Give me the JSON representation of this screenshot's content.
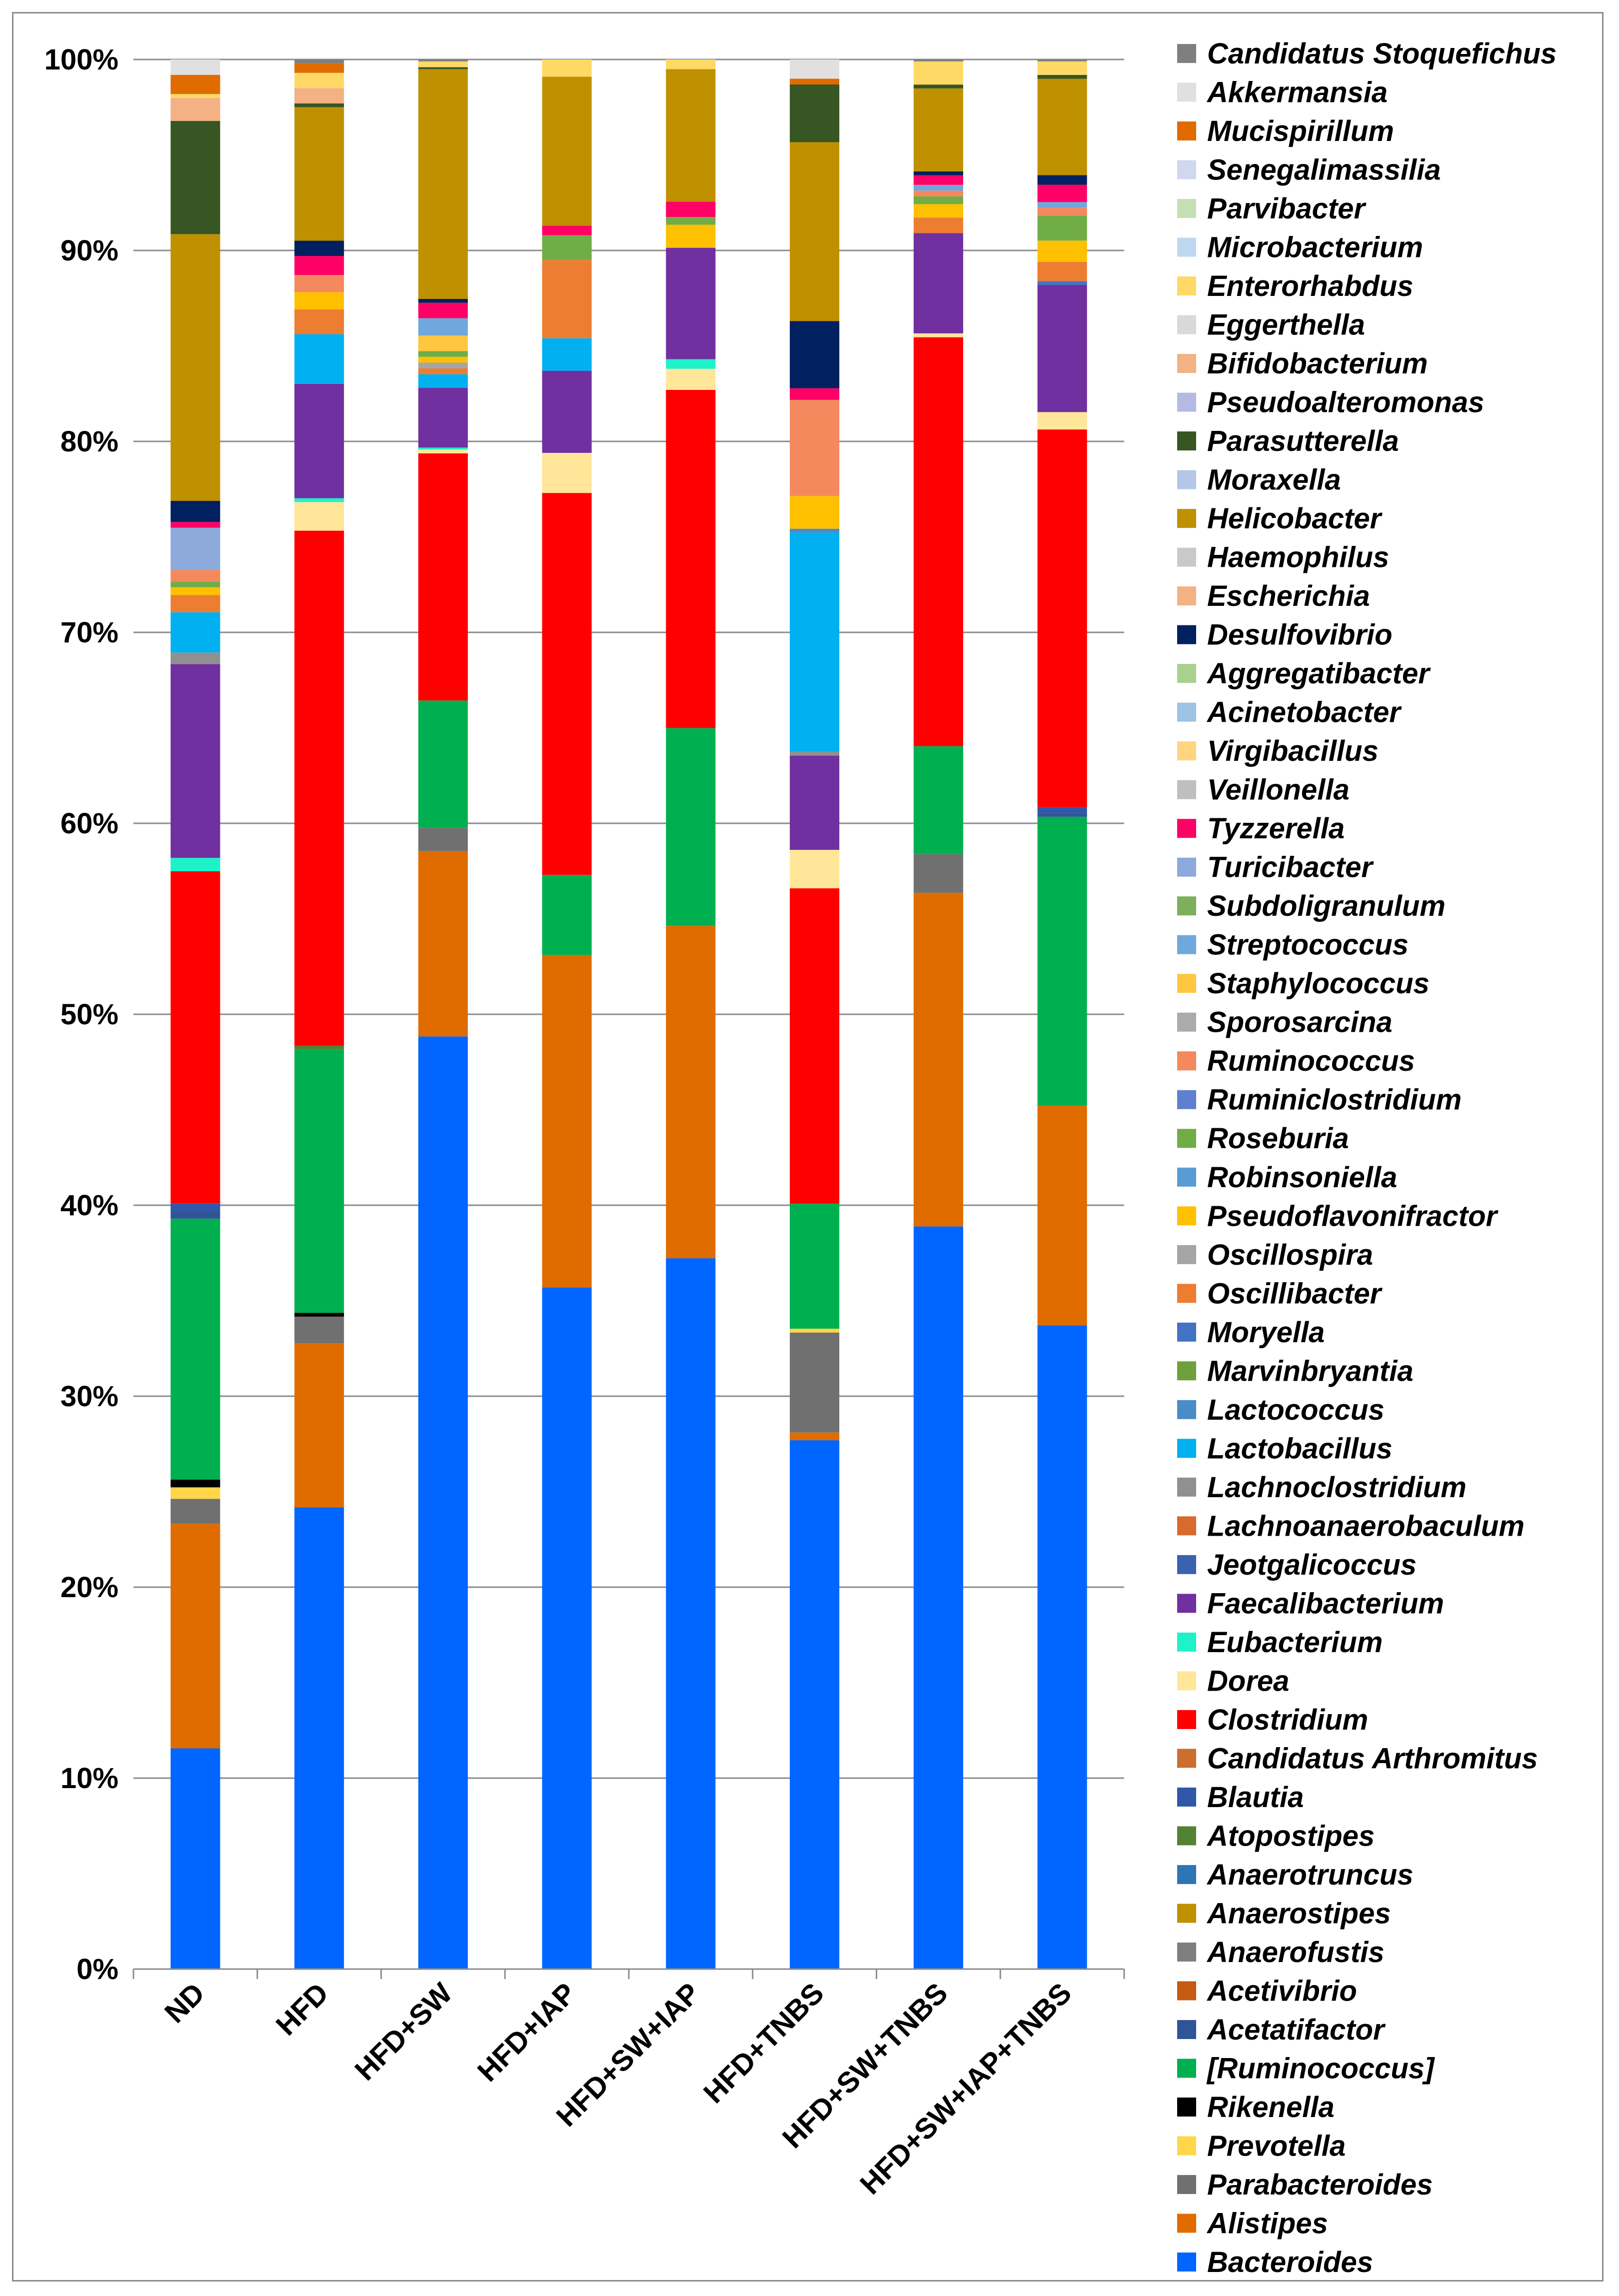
{
  "chart_data": {
    "type": "bar",
    "stacked": true,
    "normalized": true,
    "title": "",
    "xlabel": "",
    "ylabel": "",
    "ylim": [
      0,
      100
    ],
    "y_ticks": [
      "0%",
      "10%",
      "20%",
      "30%",
      "40%",
      "50%",
      "60%",
      "70%",
      "80%",
      "90%",
      "100%"
    ],
    "legend_position": "right",
    "categories": [
      "ND",
      "HFD",
      "HFD+SW",
      "HFD+IAP",
      "HFD+SW+IAP",
      "HFD+TNBS",
      "HFD+SW+TNBS",
      "HFD+SW+IAP+TNBS"
    ],
    "series": [
      {
        "name": "Bacteroides",
        "color": "#0066FF",
        "values": [
          11.5,
          24.2,
          48.3,
          35.7,
          37.0,
          27.5,
          38.5,
          33.4
        ]
      },
      {
        "name": "Alistipes",
        "color": "#E06C00",
        "values": [
          11.7,
          8.6,
          9.6,
          17.4,
          17.3,
          0.4,
          17.3,
          11.4
        ]
      },
      {
        "name": "Parabacteroides",
        "color": "#707070",
        "values": [
          1.3,
          1.4,
          1.2,
          0,
          0,
          5.2,
          2.0,
          0
        ]
      },
      {
        "name": "Prevotella",
        "color": "#FFD54A",
        "values": [
          0.6,
          0,
          0,
          0,
          0,
          0.2,
          0,
          0
        ]
      },
      {
        "name": "Rikenella",
        "color": "#000000",
        "values": [
          0.4,
          0.2,
          0,
          0,
          0,
          0,
          0,
          0
        ]
      },
      {
        "name": "[Ruminococcus]",
        "color": "#00B050",
        "values": [
          13.6,
          13.8,
          6.6,
          4.2,
          10.3,
          6.5,
          5.6,
          15.0
        ]
      },
      {
        "name": "Acetatifactor",
        "color": "#2F5597",
        "values": [
          0.4,
          0,
          0,
          0,
          0,
          0,
          0,
          0.2
        ]
      },
      {
        "name": "Acetivibrio",
        "color": "#C55A11",
        "values": [
          0,
          0,
          0,
          0,
          0,
          0,
          0,
          0
        ]
      },
      {
        "name": "Anaerofustis",
        "color": "#7F7F7F",
        "values": [
          0,
          0,
          0,
          0,
          0,
          0,
          0,
          0
        ]
      },
      {
        "name": "Anaerostipes",
        "color": "#BF9000",
        "values": [
          0,
          0,
          0,
          0,
          0,
          0,
          0,
          0
        ]
      },
      {
        "name": "Anaerotruncus",
        "color": "#2E75B6",
        "values": [
          0,
          0,
          0,
          0,
          0,
          0,
          0,
          0
        ]
      },
      {
        "name": "Atopostipes",
        "color": "#548235",
        "values": [
          0,
          0.2,
          0,
          0,
          0,
          0,
          0,
          0
        ]
      },
      {
        "name": "Blautia",
        "color": "#3057A8",
        "values": [
          0.4,
          0,
          0,
          0,
          0,
          0,
          0,
          0.3
        ]
      },
      {
        "name": "Candidatus Arthromitus",
        "color": "#CC6E2E",
        "values": [
          0,
          0,
          0,
          0,
          0,
          0,
          0,
          0
        ]
      },
      {
        "name": "Clostridium",
        "color": "#FF0000",
        "values": [
          17.3,
          27.0,
          12.8,
          20.0,
          17.6,
          16.4,
          21.2,
          19.6
        ]
      },
      {
        "name": "Dorea",
        "color": "#FFE699",
        "values": [
          0,
          1.5,
          0.2,
          2.1,
          1.1,
          2.0,
          0.2,
          0.9
        ]
      },
      {
        "name": "Eubacterium",
        "color": "#1DF2C8",
        "values": [
          0.7,
          0.2,
          0.1,
          0,
          0.5,
          0,
          0,
          0
        ]
      },
      {
        "name": "Faecalibacterium",
        "color": "#7030A0",
        "values": [
          10.1,
          6.0,
          3.1,
          4.3,
          5.8,
          4.9,
          5.2,
          6.6
        ]
      },
      {
        "name": "Jeotgalicoccus",
        "color": "#3A62B0",
        "values": [
          0,
          0,
          0,
          0,
          0,
          0,
          0,
          0
        ]
      },
      {
        "name": "Lachnoanaerobaculum",
        "color": "#D86A2E",
        "values": [
          0,
          0,
          0,
          0,
          0,
          0,
          0,
          0
        ]
      },
      {
        "name": "Lachnoclostridium",
        "color": "#909090",
        "values": [
          0.6,
          0,
          0,
          0,
          0,
          0.2,
          0,
          0
        ]
      },
      {
        "name": "Lactobacillus",
        "color": "#00B0F0",
        "values": [
          2.1,
          2.6,
          0.7,
          1.7,
          0,
          11.4,
          0,
          0
        ]
      },
      {
        "name": "Lactococcus",
        "color": "#4A8CC8",
        "values": [
          0,
          0,
          0,
          0,
          0,
          0.2,
          0,
          0
        ]
      },
      {
        "name": "Marvinbryantia",
        "color": "#6EA03C",
        "values": [
          0,
          0,
          0,
          0,
          0,
          0,
          0,
          0
        ]
      },
      {
        "name": "Moryella",
        "color": "#4472C4",
        "values": [
          0,
          0,
          0,
          0,
          0,
          0,
          0,
          0.2
        ]
      },
      {
        "name": "Oscillibacter",
        "color": "#ED7D31",
        "values": [
          0.9,
          1.3,
          0.3,
          4.1,
          0,
          0,
          0.8,
          1.0
        ]
      },
      {
        "name": "Oscillospira",
        "color": "#A5A5A5",
        "values": [
          0,
          0,
          0.3,
          0,
          0,
          0,
          0,
          0
        ]
      },
      {
        "name": "Pseudoflavonifractor",
        "color": "#FFC000",
        "values": [
          0.4,
          0.9,
          0.3,
          0,
          1.2,
          1.7,
          0.7,
          1.1
        ]
      },
      {
        "name": "Robinsoniella",
        "color": "#5B9BD5",
        "values": [
          0,
          0,
          0,
          0,
          0,
          0,
          0,
          0
        ]
      },
      {
        "name": "Roseburia",
        "color": "#70AD47",
        "values": [
          0.3,
          0,
          0.3,
          1.3,
          0.4,
          0,
          0.4,
          1.3
        ]
      },
      {
        "name": "Ruminiclostridium",
        "color": "#5F7FD0",
        "values": [
          0,
          0,
          0,
          0,
          0,
          0,
          0,
          0
        ]
      },
      {
        "name": "Ruminococcus",
        "color": "#F4895E",
        "values": [
          0.6,
          0.9,
          0,
          0,
          0,
          5.0,
          0.3,
          0.4
        ]
      },
      {
        "name": "Sporosarcina",
        "color": "#ABABAB",
        "values": [
          0,
          0,
          0,
          0,
          0,
          0,
          0,
          0
        ]
      },
      {
        "name": "Staphylococcus",
        "color": "#FFC740",
        "values": [
          0,
          0,
          0.8,
          0,
          0,
          0,
          0,
          0
        ]
      },
      {
        "name": "Streptococcus",
        "color": "#6FA8DC",
        "values": [
          0,
          0,
          0.9,
          0,
          0,
          0,
          0.3,
          0.3
        ]
      },
      {
        "name": "Subdoligranulum",
        "color": "#7DB05A",
        "values": [
          0,
          0,
          0,
          0,
          0,
          0,
          0,
          0
        ]
      },
      {
        "name": "Turicibacter",
        "color": "#8EA9DB",
        "values": [
          2.2,
          0,
          0,
          0,
          0,
          0,
          0,
          0
        ]
      },
      {
        "name": "Tyzzerella",
        "color": "#FF0066",
        "values": [
          0.3,
          1.0,
          0.8,
          0.5,
          0.8,
          0.6,
          0.5,
          0.9
        ]
      },
      {
        "name": "Veillonella",
        "color": "#BFBFBF",
        "values": [
          0,
          0,
          0,
          0,
          0,
          0,
          0,
          0
        ]
      },
      {
        "name": "Virgibacillus",
        "color": "#FFD580",
        "values": [
          0,
          0,
          0,
          0,
          0,
          0,
          0,
          0
        ]
      },
      {
        "name": "Acinetobacter",
        "color": "#9DC3E6",
        "values": [
          0,
          0,
          0,
          0,
          0,
          0,
          0,
          0
        ]
      },
      {
        "name": "Aggregatibacter",
        "color": "#A9D18E",
        "values": [
          0,
          0,
          0,
          0,
          0,
          0,
          0,
          0
        ]
      },
      {
        "name": "Desulfovibrio",
        "color": "#002060",
        "values": [
          1.1,
          0.8,
          0.2,
          0,
          0,
          3.5,
          0.2,
          0.5
        ]
      },
      {
        "name": "Escherichia",
        "color": "#F4B183",
        "values": [
          0,
          0,
          0,
          0,
          0,
          0,
          0,
          0
        ]
      },
      {
        "name": "Haemophilus",
        "color": "#C9C9C9",
        "values": [
          0,
          0,
          0,
          0,
          0,
          0,
          0,
          0
        ]
      },
      {
        "name": "Helicobacter",
        "color": "#BF9000",
        "values": [
          13.9,
          7.0,
          11.9,
          7.8,
          6.9,
          9.3,
          4.3,
          5.0
        ]
      },
      {
        "name": "Moraxella",
        "color": "#B4C7E7",
        "values": [
          0,
          0,
          0,
          0,
          0,
          0,
          0,
          0
        ]
      },
      {
        "name": "Parasutterella",
        "color": "#375623",
        "values": [
          5.9,
          0.2,
          0.1,
          0,
          0,
          3.0,
          0.2,
          0.2
        ]
      },
      {
        "name": "Pseudoalteromonas",
        "color": "#B4BBE3",
        "values": [
          0,
          0,
          0,
          0,
          0,
          0,
          0,
          0
        ]
      },
      {
        "name": "Bifidobacterium",
        "color": "#F4B183",
        "values": [
          1.2,
          0.8,
          0,
          0,
          0,
          0,
          0,
          0
        ]
      },
      {
        "name": "Eggerthella",
        "color": "#D9D9D9",
        "values": [
          0,
          0,
          0,
          0,
          0,
          0,
          0,
          0
        ]
      },
      {
        "name": "Enterorhabdus",
        "color": "#FFD966",
        "values": [
          0.2,
          0.8,
          0.3,
          0.9,
          0.5,
          0,
          1.2,
          0.7
        ]
      },
      {
        "name": "Microbacterium",
        "color": "#BDD7EE",
        "values": [
          0,
          0,
          0,
          0,
          0,
          0,
          0,
          0
        ]
      },
      {
        "name": "Parvibacter",
        "color": "#C5E0B4",
        "values": [
          0,
          0,
          0,
          0,
          0,
          0,
          0,
          0
        ]
      },
      {
        "name": "Senegalimassilia",
        "color": "#D0D8F0",
        "values": [
          0,
          0,
          0,
          0,
          0,
          0,
          0,
          0
        ]
      },
      {
        "name": "Mucispirillum",
        "color": "#E06C00",
        "values": [
          1.0,
          0.5,
          0,
          0,
          0,
          0.3,
          0,
          0
        ]
      },
      {
        "name": "Akkermansia",
        "color": "#E0E0E0",
        "values": [
          0.8,
          0,
          0,
          0,
          0,
          1.0,
          0,
          0
        ]
      },
      {
        "name": "Candidatus Stoquefichus",
        "color": "#7F7F7F",
        "values": [
          0,
          0.2,
          0.1,
          0,
          0,
          0,
          0.1,
          0.1
        ]
      }
    ]
  }
}
